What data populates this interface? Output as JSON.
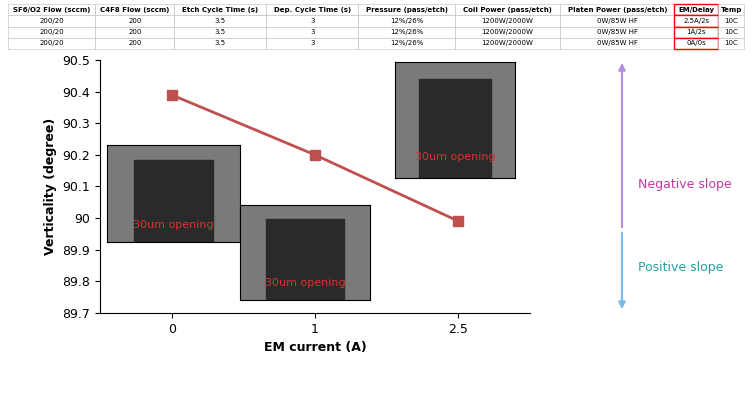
{
  "table": {
    "header": [
      "SF6/O2 Flow (sccm)",
      "C4F8 Flow (sccm)",
      "Etch Cycle Time (s)",
      "Dep. Cycle Time (s)",
      "Pressure (pass/etch)",
      "Coil Power (pass/etch)",
      "Platen Power (pass/etch)",
      "EM/Delay",
      "Temp"
    ],
    "rows": [
      [
        "200/20",
        "200",
        "3.5",
        "3",
        "12%/26%",
        "1200W/2000W",
        "0W/85W HF",
        "2.5A/2s",
        "10C"
      ],
      [
        "200/20",
        "200",
        "3.5",
        "3",
        "12%/26%",
        "1200W/2000W",
        "0W/85W HF",
        "1A/2s",
        "10C"
      ],
      [
        "200/20",
        "200",
        "3.5",
        "3",
        "12%/26%",
        "1200W/2000W",
        "0W/85W HF",
        "0A/0s",
        "10C"
      ]
    ]
  },
  "chart_data": {
    "type": "line",
    "x_label": "EM current (A)",
    "y_label": "Verticality (degree)",
    "categories": [
      "0",
      "1",
      "2.5"
    ],
    "values": [
      90.39,
      90.2,
      89.99
    ],
    "color": "#c0504d",
    "marker": "square",
    "line_style": "solid",
    "grid": false,
    "ylim": [
      89.7,
      90.5
    ],
    "yticks": [
      89.7,
      89.8,
      89.9,
      90,
      90.1,
      90.2,
      90.3,
      90.4,
      90.5
    ],
    "image_labels": [
      "30um opening",
      "30um opening",
      "30um opening"
    ],
    "annotations": [
      "Negative slope",
      "Positive slope"
    ]
  }
}
